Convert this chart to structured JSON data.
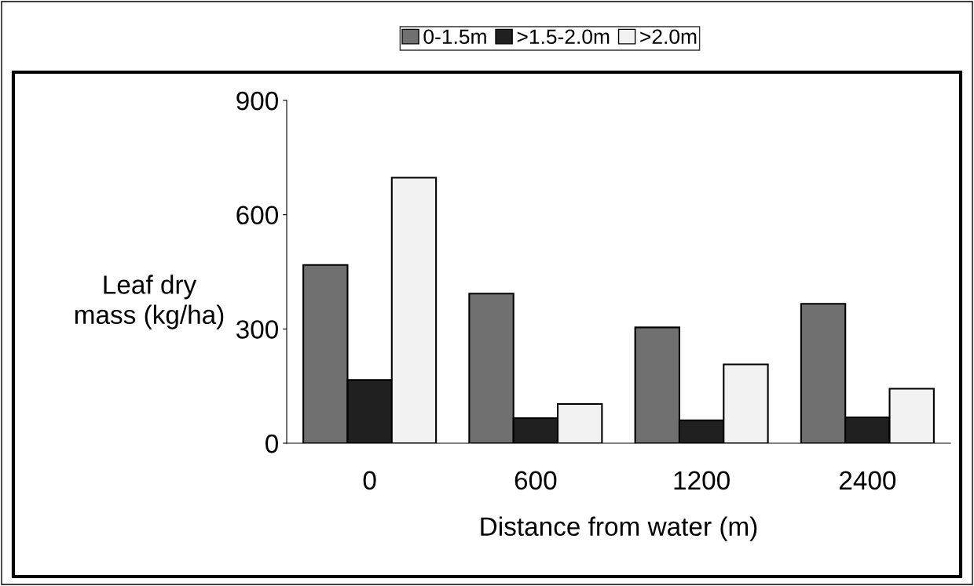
{
  "chart_data": {
    "type": "bar",
    "xlabel": "Distance from water (m)",
    "ylabel": "Leaf dry\nmass (kg/ha)",
    "categories": [
      "0",
      "600",
      "1200",
      "2400"
    ],
    "series": [
      {
        "name": "0-1.5m",
        "color": "#707070",
        "values": [
          468,
          393,
          304,
          366
        ]
      },
      {
        "name": ">1.5-2.0m",
        "color": "#202020",
        "values": [
          166,
          66,
          60,
          68
        ]
      },
      {
        "name": ">2.0m",
        "color": "#f2f2f2",
        "values": [
          697,
          103,
          207,
          143
        ]
      }
    ],
    "ylim": [
      0,
      900
    ],
    "yticks": [
      0,
      300,
      600,
      900
    ],
    "grid": false,
    "legend": "top"
  }
}
